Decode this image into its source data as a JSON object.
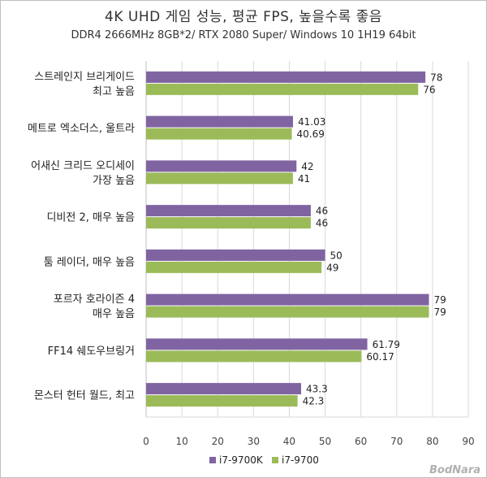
{
  "chart_data": {
    "type": "bar",
    "orientation": "horizontal",
    "title": "4K UHD 게임 성능, 평균 FPS, 높을수록 좋음",
    "subtitle": "DDR4 2666MHz 8GB*2/ RTX 2080 Super/ Windows 10 1H19 64bit",
    "categories": [
      [
        "스트레인지 브리게이드",
        "최고 높음"
      ],
      [
        "메트로 엑소더스, 울트라"
      ],
      [
        "어새신 크리드 오디세이",
        "가장 높음"
      ],
      [
        "디비전 2, 매우 높음"
      ],
      [
        "툼 레이더, 매우 높음"
      ],
      [
        "포르자 호라이즌 4",
        "매우 높음"
      ],
      [
        "FF14 쉐도우브링거"
      ],
      [
        "몬스터 헌터 월드, 최고"
      ]
    ],
    "series": [
      {
        "name": "i7-9700K",
        "color": "#8064a2",
        "values": [
          78,
          41.03,
          42,
          46,
          50,
          79,
          61.79,
          43.3
        ],
        "labels": [
          "78",
          "41.03",
          "42",
          "46",
          "50",
          "79",
          "61.79",
          "43.3"
        ]
      },
      {
        "name": "i7-9700",
        "color": "#9bbb59",
        "values": [
          76,
          40.69,
          41,
          46,
          49,
          79,
          60.17,
          42.3
        ],
        "labels": [
          "76",
          "40.69",
          "41",
          "46",
          "49",
          "79",
          "60.17",
          "42.3"
        ]
      }
    ],
    "xlim": [
      0,
      90
    ],
    "xticks": [
      0,
      10,
      20,
      30,
      40,
      50,
      60,
      70,
      80,
      90
    ],
    "grid": true,
    "legend_position": "bottom"
  },
  "watermark": "BodNara"
}
